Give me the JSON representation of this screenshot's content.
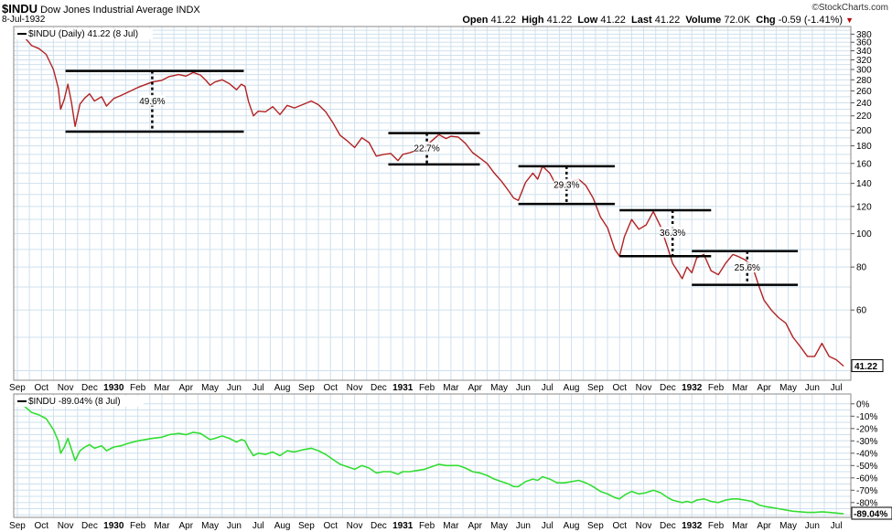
{
  "header": {
    "symbol": "$INDU",
    "name": "Dow Jones Industrial Average",
    "exchange": "INDX",
    "date": "8-Jul-1932",
    "watermark": "©StockCharts.com",
    "open_label": "Open",
    "open": "41.22",
    "high_label": "High",
    "high": "41.22",
    "low_label": "Low",
    "low": "41.22",
    "last_label": "Last",
    "last": "41.22",
    "volume_label": "Volume",
    "volume": "72.0K",
    "chg_label": "Chg",
    "chg": "-0.59 (-1.41%)"
  },
  "chart_data": [
    {
      "type": "line",
      "legend": "$INDU (Daily) 41.22 (8 Jul)",
      "scale": "log",
      "series_color": "#b22222",
      "y_ticks": [
        380,
        360,
        340,
        320,
        300,
        280,
        260,
        240,
        220,
        200,
        180,
        160,
        140,
        120,
        100,
        80,
        60
      ],
      "last_value_label": "41.22",
      "x_labels": [
        {
          "t": 0,
          "label": "Sep",
          "bold": false
        },
        {
          "t": 1,
          "label": "Oct",
          "bold": false
        },
        {
          "t": 2,
          "label": "Nov",
          "bold": false
        },
        {
          "t": 3,
          "label": "Dec",
          "bold": false
        },
        {
          "t": 4,
          "label": "1930",
          "bold": true
        },
        {
          "t": 5,
          "label": "Feb",
          "bold": false
        },
        {
          "t": 6,
          "label": "Mar",
          "bold": false
        },
        {
          "t": 7,
          "label": "Apr",
          "bold": false
        },
        {
          "t": 8,
          "label": "May",
          "bold": false
        },
        {
          "t": 9,
          "label": "Jun",
          "bold": false
        },
        {
          "t": 10,
          "label": "Jul",
          "bold": false
        },
        {
          "t": 11,
          "label": "Aug",
          "bold": false
        },
        {
          "t": 12,
          "label": "Sep",
          "bold": false
        },
        {
          "t": 13,
          "label": "Oct",
          "bold": false
        },
        {
          "t": 14,
          "label": "Nov",
          "bold": false
        },
        {
          "t": 15,
          "label": "Dec",
          "bold": false
        },
        {
          "t": 16,
          "label": "1931",
          "bold": true
        },
        {
          "t": 17,
          "label": "Feb",
          "bold": false
        },
        {
          "t": 18,
          "label": "Mar",
          "bold": false
        },
        {
          "t": 19,
          "label": "Apr",
          "bold": false
        },
        {
          "t": 20,
          "label": "May",
          "bold": false
        },
        {
          "t": 21,
          "label": "Jun",
          "bold": false
        },
        {
          "t": 22,
          "label": "Jul",
          "bold": false
        },
        {
          "t": 23,
          "label": "Aug",
          "bold": false
        },
        {
          "t": 24,
          "label": "Sep",
          "bold": false
        },
        {
          "t": 25,
          "label": "Oct",
          "bold": false
        },
        {
          "t": 26,
          "label": "Nov",
          "bold": false
        },
        {
          "t": 27,
          "label": "Dec",
          "bold": false
        },
        {
          "t": 28,
          "label": "1932",
          "bold": true
        },
        {
          "t": 29,
          "label": "Feb",
          "bold": false
        },
        {
          "t": 30,
          "label": "Mar",
          "bold": false
        },
        {
          "t": 31,
          "label": "Apr",
          "bold": false
        },
        {
          "t": 32,
          "label": "May",
          "bold": false
        },
        {
          "t": 33,
          "label": "Jun",
          "bold": false
        },
        {
          "t": 34,
          "label": "Jul",
          "bold": false
        }
      ],
      "points": [
        [
          0.0,
          381
        ],
        [
          0.3,
          372
        ],
        [
          0.6,
          352
        ],
        [
          0.9,
          345
        ],
        [
          1.2,
          332
        ],
        [
          1.5,
          300
        ],
        [
          1.7,
          265
        ],
        [
          1.8,
          230
        ],
        [
          1.95,
          246
        ],
        [
          2.1,
          272
        ],
        [
          2.25,
          240
        ],
        [
          2.4,
          205
        ],
        [
          2.6,
          238
        ],
        [
          2.8,
          248
        ],
        [
          3.0,
          255
        ],
        [
          3.2,
          243
        ],
        [
          3.5,
          250
        ],
        [
          3.7,
          235
        ],
        [
          4.0,
          247
        ],
        [
          4.3,
          252
        ],
        [
          4.6,
          258
        ],
        [
          5.0,
          266
        ],
        [
          5.3,
          271
        ],
        [
          5.6,
          276
        ],
        [
          6.0,
          279
        ],
        [
          6.3,
          286
        ],
        [
          6.7,
          290
        ],
        [
          7.0,
          287
        ],
        [
          7.3,
          294
        ],
        [
          7.6,
          289
        ],
        [
          7.85,
          278
        ],
        [
          8.0,
          270
        ],
        [
          8.2,
          276
        ],
        [
          8.5,
          280
        ],
        [
          8.8,
          273
        ],
        [
          9.1,
          262
        ],
        [
          9.3,
          272
        ],
        [
          9.45,
          268
        ],
        [
          9.6,
          242
        ],
        [
          9.8,
          220
        ],
        [
          10.0,
          227
        ],
        [
          10.3,
          226
        ],
        [
          10.6,
          234
        ],
        [
          10.9,
          222
        ],
        [
          11.2,
          236
        ],
        [
          11.5,
          232
        ],
        [
          11.9,
          238
        ],
        [
          12.2,
          243
        ],
        [
          12.5,
          237
        ],
        [
          12.8,
          226
        ],
        [
          13.1,
          210
        ],
        [
          13.4,
          193
        ],
        [
          13.7,
          186
        ],
        [
          14.0,
          178
        ],
        [
          14.3,
          190
        ],
        [
          14.6,
          184
        ],
        [
          14.9,
          168
        ],
        [
          15.2,
          170
        ],
        [
          15.5,
          171
        ],
        [
          15.8,
          163
        ],
        [
          16.0,
          170
        ],
        [
          16.3,
          172
        ],
        [
          16.6,
          175
        ],
        [
          16.9,
          178
        ],
        [
          17.2,
          186
        ],
        [
          17.5,
          194
        ],
        [
          17.8,
          189
        ],
        [
          18.0,
          192
        ],
        [
          18.3,
          191
        ],
        [
          18.6,
          183
        ],
        [
          18.9,
          172
        ],
        [
          19.2,
          166
        ],
        [
          19.5,
          160
        ],
        [
          19.8,
          150
        ],
        [
          20.1,
          142
        ],
        [
          20.4,
          133
        ],
        [
          20.6,
          127
        ],
        [
          20.8,
          125
        ],
        [
          21.1,
          141
        ],
        [
          21.4,
          150
        ],
        [
          21.6,
          144
        ],
        [
          21.8,
          157
        ],
        [
          22.1,
          150
        ],
        [
          22.4,
          137
        ],
        [
          22.7,
          139
        ],
        [
          23.0,
          142
        ],
        [
          23.3,
          144
        ],
        [
          23.6,
          138
        ],
        [
          23.9,
          127
        ],
        [
          24.2,
          112
        ],
        [
          24.5,
          104
        ],
        [
          24.8,
          90
        ],
        [
          25.0,
          86
        ],
        [
          25.2,
          98
        ],
        [
          25.5,
          110
        ],
        [
          25.8,
          103
        ],
        [
          26.1,
          106
        ],
        [
          26.4,
          116
        ],
        [
          26.7,
          105
        ],
        [
          27.0,
          91
        ],
        [
          27.2,
          82
        ],
        [
          27.4,
          78
        ],
        [
          27.6,
          74
        ],
        [
          27.8,
          80
        ],
        [
          28.0,
          77
        ],
        [
          28.2,
          85
        ],
        [
          28.5,
          87
        ],
        [
          28.8,
          78
        ],
        [
          29.1,
          76
        ],
        [
          29.4,
          82
        ],
        [
          29.7,
          87
        ],
        [
          29.9,
          86
        ],
        [
          30.2,
          84
        ],
        [
          30.5,
          81
        ],
        [
          30.8,
          70
        ],
        [
          31.0,
          64
        ],
        [
          31.3,
          60
        ],
        [
          31.6,
          57
        ],
        [
          31.9,
          55
        ],
        [
          32.2,
          50
        ],
        [
          32.5,
          47
        ],
        [
          32.8,
          44
        ],
        [
          33.1,
          44
        ],
        [
          33.4,
          48
        ],
        [
          33.7,
          44
        ],
        [
          34.0,
          43
        ],
        [
          34.3,
          41.22
        ]
      ],
      "annotations": [
        {
          "x0": 2.0,
          "x1": 9.4,
          "top": 297,
          "bottom": 198,
          "mark_x": 5.6,
          "label": "49.6%"
        },
        {
          "x0": 15.4,
          "x1": 19.2,
          "top": 196,
          "bottom": 159,
          "mark_x": 17.0,
          "label": "22.7%"
        },
        {
          "x0": 20.8,
          "x1": 24.8,
          "top": 157,
          "bottom": 122,
          "mark_x": 22.8,
          "label": "29.3%"
        },
        {
          "x0": 25.0,
          "x1": 28.8,
          "top": 117,
          "bottom": 86,
          "mark_x": 27.2,
          "label": "36.3%"
        },
        {
          "x0": 28.0,
          "x1": 32.4,
          "top": 89,
          "bottom": 71,
          "mark_x": 30.3,
          "label": "25.6%"
        }
      ]
    },
    {
      "type": "line",
      "legend": "$INDU -89.04% (8 Jul)",
      "series_color": "#33dd33",
      "y_ticks": [
        "0%",
        "-10%",
        "-20%",
        "-30%",
        "-40%",
        "-50%",
        "-60%",
        "-70%",
        "-80%"
      ],
      "y_tick_values": [
        0,
        -10,
        -20,
        -30,
        -40,
        -50,
        -60,
        -70,
        -80
      ],
      "ylim": [
        -92,
        8
      ],
      "last_value_label": "-89.04%",
      "points": [
        [
          0.0,
          0
        ],
        [
          0.3,
          -2
        ],
        [
          0.6,
          -7
        ],
        [
          0.9,
          -9
        ],
        [
          1.2,
          -12
        ],
        [
          1.5,
          -21
        ],
        [
          1.7,
          -30
        ],
        [
          1.8,
          -40
        ],
        [
          1.95,
          -35
        ],
        [
          2.1,
          -28
        ],
        [
          2.25,
          -37
        ],
        [
          2.4,
          -46
        ],
        [
          2.6,
          -38
        ],
        [
          2.8,
          -35
        ],
        [
          3.0,
          -33
        ],
        [
          3.2,
          -36
        ],
        [
          3.5,
          -34
        ],
        [
          3.7,
          -38
        ],
        [
          4.0,
          -35
        ],
        [
          4.3,
          -34
        ],
        [
          4.6,
          -32
        ],
        [
          5.0,
          -30
        ],
        [
          5.3,
          -29
        ],
        [
          5.6,
          -28
        ],
        [
          6.0,
          -27
        ],
        [
          6.3,
          -25
        ],
        [
          6.7,
          -24
        ],
        [
          7.0,
          -25
        ],
        [
          7.3,
          -23
        ],
        [
          7.6,
          -24
        ],
        [
          7.85,
          -27
        ],
        [
          8.0,
          -29
        ],
        [
          8.2,
          -28
        ],
        [
          8.5,
          -26
        ],
        [
          8.8,
          -28
        ],
        [
          9.1,
          -31
        ],
        [
          9.3,
          -29
        ],
        [
          9.45,
          -30
        ],
        [
          9.6,
          -36
        ],
        [
          9.8,
          -42
        ],
        [
          10.0,
          -40
        ],
        [
          10.3,
          -41
        ],
        [
          10.6,
          -39
        ],
        [
          10.9,
          -42
        ],
        [
          11.2,
          -38
        ],
        [
          11.5,
          -39
        ],
        [
          11.9,
          -37
        ],
        [
          12.2,
          -36
        ],
        [
          12.5,
          -38
        ],
        [
          12.8,
          -41
        ],
        [
          13.1,
          -45
        ],
        [
          13.4,
          -49
        ],
        [
          13.7,
          -51
        ],
        [
          14.0,
          -53
        ],
        [
          14.3,
          -50
        ],
        [
          14.6,
          -52
        ],
        [
          14.9,
          -56
        ],
        [
          15.2,
          -55
        ],
        [
          15.5,
          -55
        ],
        [
          15.8,
          -57
        ],
        [
          16.0,
          -55
        ],
        [
          16.3,
          -55
        ],
        [
          16.6,
          -54
        ],
        [
          16.9,
          -53
        ],
        [
          17.2,
          -51
        ],
        [
          17.5,
          -49
        ],
        [
          17.8,
          -50
        ],
        [
          18.0,
          -50
        ],
        [
          18.3,
          -50
        ],
        [
          18.6,
          -52
        ],
        [
          18.9,
          -55
        ],
        [
          19.2,
          -56
        ],
        [
          19.5,
          -58
        ],
        [
          19.8,
          -61
        ],
        [
          20.1,
          -63
        ],
        [
          20.4,
          -65
        ],
        [
          20.6,
          -67
        ],
        [
          20.8,
          -67
        ],
        [
          21.1,
          -63
        ],
        [
          21.4,
          -61
        ],
        [
          21.6,
          -62
        ],
        [
          21.8,
          -59
        ],
        [
          22.1,
          -61
        ],
        [
          22.4,
          -64
        ],
        [
          22.7,
          -64
        ],
        [
          23.0,
          -63
        ],
        [
          23.3,
          -62
        ],
        [
          23.6,
          -64
        ],
        [
          23.9,
          -67
        ],
        [
          24.2,
          -71
        ],
        [
          24.5,
          -73
        ],
        [
          24.8,
          -76
        ],
        [
          25.0,
          -77
        ],
        [
          25.2,
          -74
        ],
        [
          25.5,
          -71
        ],
        [
          25.8,
          -73
        ],
        [
          26.1,
          -72
        ],
        [
          26.4,
          -70
        ],
        [
          26.7,
          -72
        ],
        [
          27.0,
          -76
        ],
        [
          27.2,
          -78
        ],
        [
          27.4,
          -79
        ],
        [
          27.6,
          -80
        ],
        [
          27.8,
          -79
        ],
        [
          28.0,
          -80
        ],
        [
          28.2,
          -78
        ],
        [
          28.5,
          -77
        ],
        [
          28.8,
          -79
        ],
        [
          29.1,
          -80
        ],
        [
          29.4,
          -78
        ],
        [
          29.7,
          -77
        ],
        [
          29.9,
          -77
        ],
        [
          30.2,
          -78
        ],
        [
          30.5,
          -79
        ],
        [
          30.8,
          -82
        ],
        [
          31.0,
          -83
        ],
        [
          31.3,
          -84
        ],
        [
          31.6,
          -85
        ],
        [
          31.9,
          -86
        ],
        [
          32.2,
          -87
        ],
        [
          32.5,
          -87.5
        ],
        [
          32.8,
          -88
        ],
        [
          33.1,
          -88
        ],
        [
          33.4,
          -87.5
        ],
        [
          33.7,
          -88
        ],
        [
          34.0,
          -88.5
        ],
        [
          34.3,
          -89.04
        ]
      ]
    }
  ]
}
